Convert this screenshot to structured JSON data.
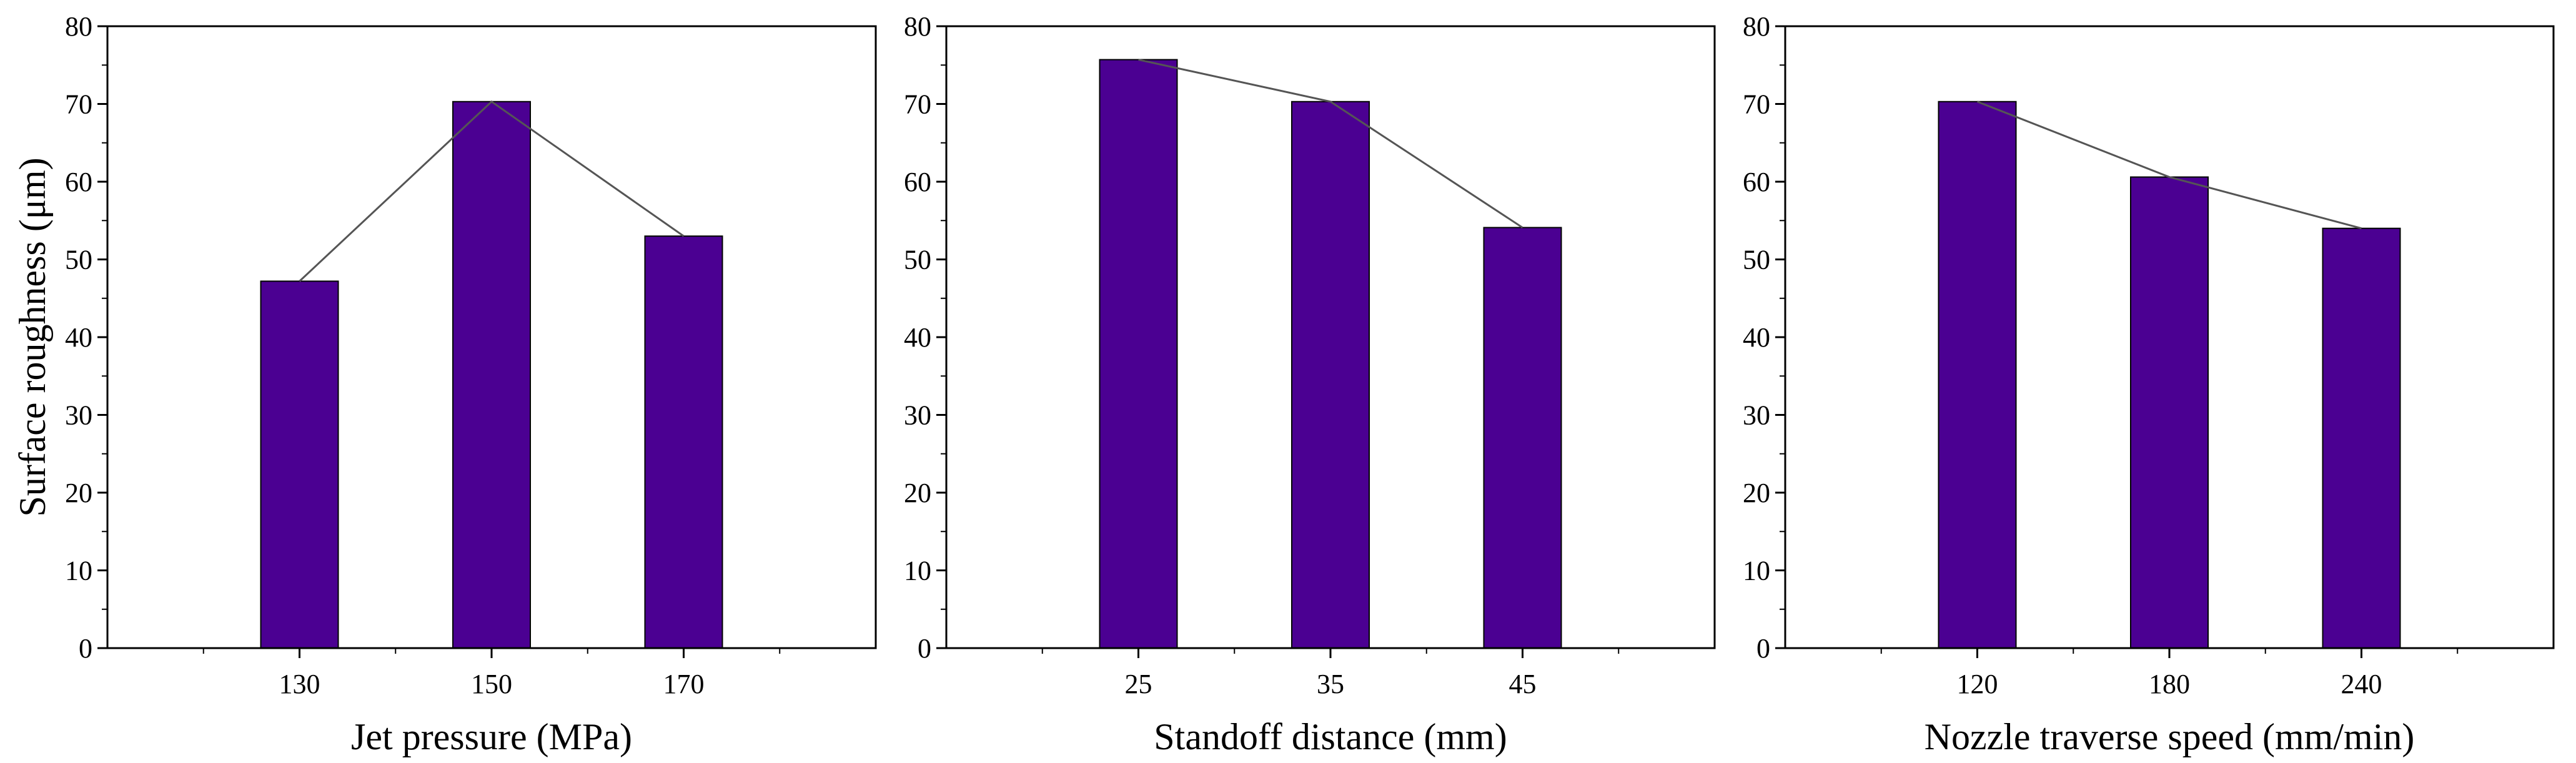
{
  "chart_data": [
    {
      "type": "bar",
      "categories": [
        "130",
        "150",
        "170"
      ],
      "values": [
        47.2,
        70.3,
        53.0
      ],
      "xlabel": "Jet pressure (MPa)",
      "ylabel": "Surface roughness (μm)",
      "ylim": [
        0,
        80
      ],
      "yticks": [
        0,
        10,
        20,
        30,
        40,
        50,
        60,
        70,
        80
      ],
      "connecting_line": true,
      "bar_color": "#4b0092",
      "line_color": "#555555"
    },
    {
      "type": "bar",
      "categories": [
        "25",
        "35",
        "45"
      ],
      "values": [
        75.7,
        70.3,
        54.1
      ],
      "xlabel": "Standoff distance (mm)",
      "ylabel": "",
      "ylim": [
        0,
        80
      ],
      "yticks": [
        0,
        10,
        20,
        30,
        40,
        50,
        60,
        70,
        80
      ],
      "connecting_line": true,
      "bar_color": "#4b0092",
      "line_color": "#555555"
    },
    {
      "type": "bar",
      "categories": [
        "120",
        "180",
        "240"
      ],
      "values": [
        70.3,
        60.6,
        54.0
      ],
      "xlabel": "Nozzle traverse speed (mm/min)",
      "ylabel": "",
      "ylim": [
        0,
        80
      ],
      "yticks": [
        0,
        10,
        20,
        30,
        40,
        50,
        60,
        70,
        80
      ],
      "connecting_line": true,
      "bar_color": "#4b0092",
      "line_color": "#555555"
    }
  ]
}
